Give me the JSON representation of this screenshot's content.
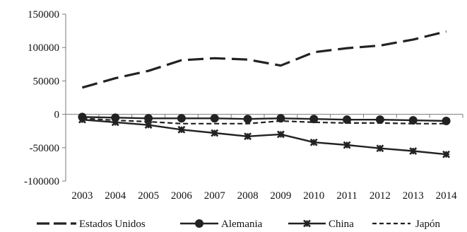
{
  "chart_data": {
    "type": "line",
    "title": "",
    "xlabel": "",
    "ylabel": "",
    "categories": [
      "2003",
      "2004",
      "2005",
      "2006",
      "2007",
      "2008",
      "2009",
      "2010",
      "2011",
      "2012",
      "2013",
      "2014"
    ],
    "ylim": [
      -100000,
      150000
    ],
    "yticks": [
      150000,
      100000,
      50000,
      0,
      -50000,
      -100000
    ],
    "ytick_labels": [
      "150000",
      "100000",
      "50000",
      "0",
      "-50000",
      "-100000"
    ],
    "grid": false,
    "legend_position": "bottom",
    "series": [
      {
        "name": "Estados Unidos",
        "style": "long-dash",
        "marker": "none",
        "color": "#222222",
        "values": [
          40000,
          54000,
          65000,
          81000,
          84000,
          82000,
          73000,
          93000,
          99000,
          103000,
          112000,
          124000
        ]
      },
      {
        "name": "Alemania",
        "style": "solid",
        "marker": "circle",
        "color": "#222222",
        "values": [
          -4000,
          -5000,
          -6000,
          -6000,
          -6000,
          -7000,
          -6000,
          -7000,
          -8000,
          -8000,
          -9000,
          -10000
        ]
      },
      {
        "name": "China",
        "style": "solid",
        "marker": "star",
        "color": "#222222",
        "values": [
          -8000,
          -12000,
          -16000,
          -23000,
          -28000,
          -33000,
          -30000,
          -42000,
          -46000,
          -51000,
          -55000,
          -60000
        ]
      },
      {
        "name": "Japón",
        "style": "short-dash",
        "marker": "none",
        "color": "#222222",
        "values": [
          -6000,
          -9000,
          -11000,
          -14000,
          -14000,
          -14000,
          -10000,
          -12000,
          -13000,
          -13000,
          -14000,
          -14000
        ]
      }
    ]
  }
}
